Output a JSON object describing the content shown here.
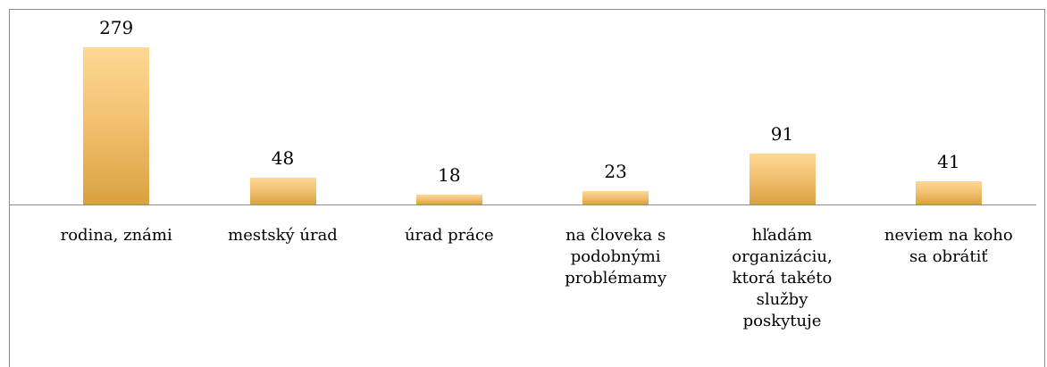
{
  "chart_data": {
    "type": "bar",
    "categories": [
      "rodina, známi",
      "mestský úrad",
      "úrad práce",
      "na človeka s podobnými problémamy",
      "hľadám organizáciu, ktorá takéto služby poskytuje",
      "neviem na koho sa obrátiť"
    ],
    "values": [
      279,
      48,
      18,
      23,
      91,
      41
    ]
  }
}
